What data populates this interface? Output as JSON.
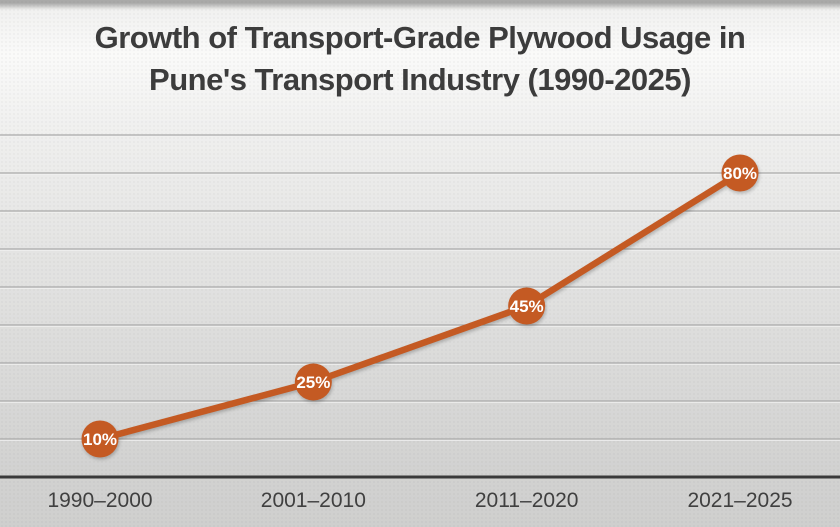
{
  "chart_data": {
    "type": "line",
    "title": "Growth of Transport-Grade Plywood Usage in Pune's Transport Industry (1990-2025)",
    "title_lines": [
      "Growth of Transport-Grade Plywood Usage in",
      "Pune's Transport Industry (1990-2025)"
    ],
    "categories": [
      "1990–2000",
      "2001–2010",
      "2011–2020",
      "2021–2025"
    ],
    "values": [
      10,
      25,
      45,
      80
    ],
    "data_labels": [
      "10%",
      "25%",
      "45%",
      "80%"
    ],
    "xlabel": "",
    "ylabel": "",
    "ylim": [
      0,
      90
    ],
    "gridline_step": 10,
    "grid": true,
    "legend": false,
    "y_axis_tick_labels_visible": false,
    "colors": {
      "series": "#C45A23",
      "marker": "#C45A23",
      "data_label_text": "#FFFFFF",
      "axis_line": "#3A3A3A",
      "gridline": "#A9A9A9",
      "gridline_highlight": "#F2F2F1",
      "tick_label_text": "#404040",
      "title_text": "#3C3C3C"
    }
  }
}
